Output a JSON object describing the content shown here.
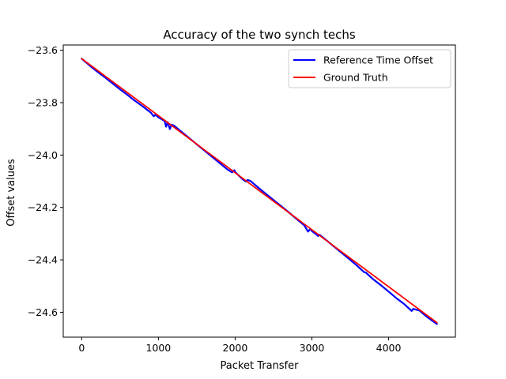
{
  "chart_data": {
    "type": "line",
    "title": "Accuracy of the two synch techs",
    "xlabel": "Packet Transfer",
    "ylabel": "Offset values",
    "xlim": [
      -240,
      4870
    ],
    "ylim": [
      -24.695,
      -23.58
    ],
    "xticks": [
      0,
      1000,
      2000,
      3000,
      4000
    ],
    "xtick_labels": [
      "0",
      "1000",
      "2000",
      "3000",
      "4000"
    ],
    "yticks": [
      -23.6,
      -23.8,
      -24.0,
      -24.2,
      -24.4,
      -24.6
    ],
    "ytick_labels": [
      "−23.6",
      "−23.8",
      "−24.0",
      "−24.2",
      "−24.4",
      "−24.6"
    ],
    "grid": false,
    "legend_position": "upper-right",
    "series": [
      {
        "name": "Reference Time Offset",
        "color": "#0000ff",
        "x": [
          0,
          100,
          200,
          300,
          400,
          500,
          600,
          680,
          700,
          800,
          900,
          940,
          960,
          1000,
          1080,
          1100,
          1120,
          1150,
          1170,
          1200,
          1300,
          1400,
          1500,
          1600,
          1700,
          1800,
          1900,
          1960,
          1990,
          2000,
          2100,
          2140,
          2160,
          2200,
          2300,
          2400,
          2500,
          2600,
          2700,
          2800,
          2900,
          2950,
          2980,
          3000,
          3050,
          3080,
          3100,
          3200,
          3300,
          3400,
          3500,
          3600,
          3680,
          3700,
          3800,
          3900,
          4000,
          4100,
          4200,
          4300,
          4320,
          4400,
          4500,
          4600,
          4630
        ],
        "y": [
          -23.632,
          -23.657,
          -23.681,
          -23.703,
          -23.726,
          -23.749,
          -23.771,
          -23.79,
          -23.794,
          -23.815,
          -23.838,
          -23.852,
          -23.846,
          -23.856,
          -23.87,
          -23.892,
          -23.874,
          -23.901,
          -23.884,
          -23.887,
          -23.911,
          -23.935,
          -23.959,
          -23.983,
          -24.007,
          -24.031,
          -24.055,
          -24.066,
          -24.058,
          -24.065,
          -24.093,
          -24.101,
          -24.095,
          -24.099,
          -24.124,
          -24.148,
          -24.172,
          -24.195,
          -24.219,
          -24.244,
          -24.268,
          -24.292,
          -24.282,
          -24.29,
          -24.301,
          -24.309,
          -24.304,
          -24.328,
          -24.352,
          -24.376,
          -24.4,
          -24.425,
          -24.447,
          -24.448,
          -24.474,
          -24.497,
          -24.521,
          -24.546,
          -24.568,
          -24.595,
          -24.587,
          -24.593,
          -24.618,
          -24.639,
          -24.645
        ]
      },
      {
        "name": "Ground Truth",
        "color": "#ff0000",
        "x": [
          0,
          4630
        ],
        "y": [
          -23.632,
          -24.64
        ]
      }
    ]
  }
}
